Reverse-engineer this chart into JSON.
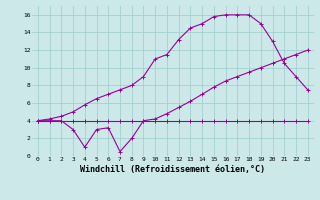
{
  "line1_x": [
    0,
    1,
    2,
    3,
    4,
    5,
    6,
    7,
    8,
    9,
    10,
    11,
    12,
    13,
    14,
    15,
    16,
    17,
    18,
    19,
    20,
    21,
    22,
    23
  ],
  "line1_y": [
    4.0,
    4.0,
    4.0,
    4.0,
    4.0,
    4.0,
    4.0,
    4.0,
    4.0,
    4.0,
    4.0,
    4.0,
    4.0,
    4.0,
    4.0,
    4.0,
    4.0,
    4.0,
    4.0,
    4.0,
    4.0,
    4.0,
    4.0,
    4.0
  ],
  "line2_x": [
    0,
    1,
    2,
    3,
    4,
    5,
    6,
    7,
    8,
    9,
    10,
    11,
    12,
    13,
    14,
    15,
    16,
    17,
    18,
    19,
    20,
    21,
    22,
    23
  ],
  "line2_y": [
    4.0,
    4.0,
    4.0,
    3.0,
    1.0,
    3.0,
    3.2,
    0.5,
    2.0,
    4.0,
    4.2,
    4.8,
    5.5,
    6.2,
    7.0,
    7.8,
    8.5,
    9.0,
    9.5,
    10.0,
    10.5,
    11.0,
    11.5,
    12.0
  ],
  "line3_x": [
    0,
    1,
    2,
    3,
    4,
    5,
    6,
    7,
    8,
    9,
    10,
    11,
    12,
    13,
    14,
    15,
    16,
    17,
    18,
    19,
    20,
    21,
    22,
    23
  ],
  "line3_y": [
    4.0,
    4.2,
    4.5,
    5.0,
    5.8,
    6.5,
    7.0,
    7.5,
    8.0,
    9.0,
    11.0,
    11.5,
    13.2,
    14.5,
    15.0,
    15.8,
    16.0,
    16.0,
    16.0,
    15.0,
    13.0,
    10.5,
    9.0,
    7.5
  ],
  "line_color": "#990099",
  "bg_color": "#cce8e8",
  "grid_color": "#99cccc",
  "xlabel": "Windchill (Refroidissement éolien,°C)",
  "xlim_min": -0.5,
  "xlim_max": 23.5,
  "ylim_min": 0,
  "ylim_max": 17,
  "xticks": [
    0,
    1,
    2,
    3,
    4,
    5,
    6,
    7,
    8,
    9,
    10,
    11,
    12,
    13,
    14,
    15,
    16,
    17,
    18,
    19,
    20,
    21,
    22,
    23
  ],
  "yticks": [
    0,
    2,
    4,
    6,
    8,
    10,
    12,
    14,
    16
  ],
  "tick_fontsize": 4.5,
  "xlabel_fontsize": 6.0,
  "marker_size": 3,
  "line_width": 0.8
}
